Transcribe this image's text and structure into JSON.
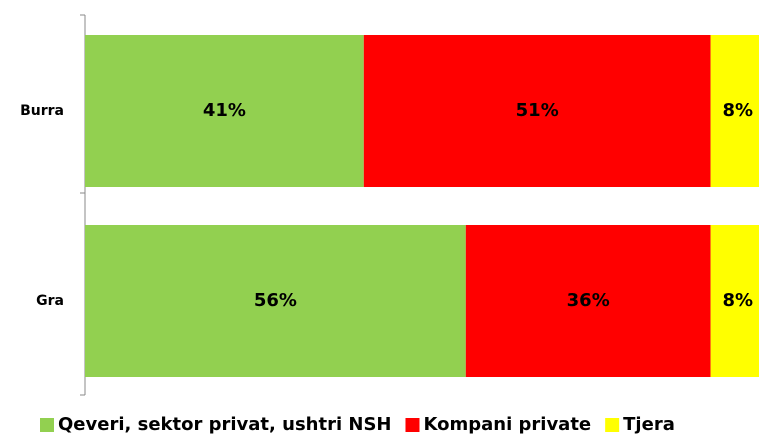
{
  "chart_data": {
    "type": "stacked_bar_horizontal",
    "categories": [
      "Burra",
      "Gra"
    ],
    "xlim": [
      0,
      100
    ],
    "series": [
      {
        "name": "Qeveri, sektor privat, ushtri NSH",
        "color": "#92d050",
        "values": [
          41,
          56
        ],
        "value_labels": [
          "41%",
          "56%"
        ]
      },
      {
        "name": "Kompani private",
        "color": "#ff0000",
        "values": [
          51,
          36
        ],
        "value_labels": [
          "51%",
          "36%"
        ]
      },
      {
        "name": "Tjera",
        "color": "#ffff00",
        "values": [
          8,
          8
        ],
        "value_labels": [
          "8%",
          "8%"
        ]
      }
    ],
    "legend": "bottom"
  }
}
